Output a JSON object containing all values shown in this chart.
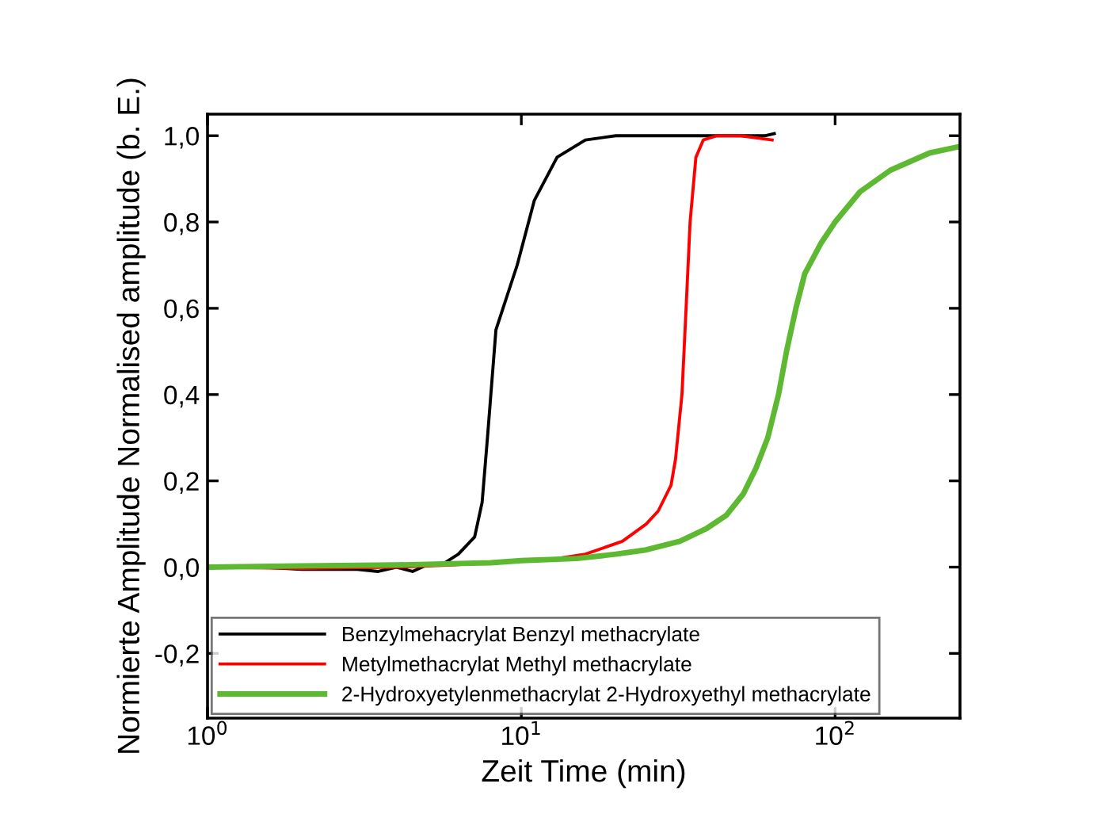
{
  "chart_data": {
    "type": "line",
    "xlabel": "Zeit Time (min)",
    "ylabel": "Normierte Amplitude Normalised amplitude (b. E.)",
    "log": "x",
    "xlim": [
      1,
      250
    ],
    "ylim": [
      -0.35,
      1.05
    ],
    "xticks": [
      {
        "value": 1,
        "label": "10$^{0}$"
      },
      {
        "value": 10,
        "label": "10$^{1}$"
      },
      {
        "value": 100,
        "label": "10$^{2}$"
      }
    ],
    "yticks": [
      {
        "value": -0.2,
        "label": "-0,2"
      },
      {
        "value": 0,
        "label": "0,0"
      },
      {
        "value": 0.2,
        "label": "0,2"
      },
      {
        "value": 0.4,
        "label": "0,4"
      },
      {
        "value": 0.6,
        "label": "0,6"
      },
      {
        "value": 0.8,
        "label": "0,8"
      },
      {
        "value": 1.0,
        "label": "1,0"
      }
    ],
    "grid": false,
    "legend": "bottom left",
    "marker": "none",
    "line_style": "solid",
    "series": [
      {
        "name": "Benzylmehacrylat Benzyl methacrylate",
        "color": "#000000",
        "x": [
          1,
          1.5,
          2,
          3,
          3.5,
          4,
          4.5,
          5,
          5.7,
          6.3,
          7.1,
          7.5,
          7.8,
          8.3,
          9.7,
          11,
          13,
          16,
          20,
          30,
          60,
          64
        ],
        "values": [
          0,
          0,
          -0.005,
          -0.005,
          -0.01,
          0,
          -0.01,
          0.005,
          0.01,
          0.03,
          0.07,
          0.15,
          0.3,
          0.55,
          0.7,
          0.85,
          0.95,
          0.99,
          1.0,
          1.0,
          1.0,
          1.005
        ]
      },
      {
        "name": "Metylmethacrylat Methyl methacrylate",
        "color": "#ff0000",
        "x": [
          1,
          2,
          4,
          6,
          13,
          16,
          21,
          25,
          27.3,
          30,
          31,
          32.5,
          33.5,
          34.5,
          36,
          38,
          42,
          50,
          63
        ],
        "values": [
          0,
          -0.003,
          0,
          0.005,
          0.02,
          0.03,
          0.06,
          0.1,
          0.13,
          0.19,
          0.25,
          0.4,
          0.6,
          0.8,
          0.95,
          0.99,
          1.0,
          1.0,
          0.99
        ]
      },
      {
        "name": "2-Hydroxyetylenmethacrylat 2-Hydroxyethyl methacrylate",
        "color": "#5db832",
        "x": [
          1,
          2,
          4,
          6,
          8,
          10,
          15,
          20,
          25,
          32,
          39,
          45,
          51,
          56,
          61,
          66,
          70,
          75,
          80,
          90,
          100,
          120,
          150,
          200,
          250
        ],
        "values": [
          0,
          0.003,
          0.005,
          0.008,
          0.01,
          0.015,
          0.02,
          0.03,
          0.04,
          0.06,
          0.09,
          0.12,
          0.17,
          0.23,
          0.3,
          0.4,
          0.5,
          0.6,
          0.68,
          0.75,
          0.8,
          0.87,
          0.92,
          0.96,
          0.975
        ]
      }
    ]
  }
}
